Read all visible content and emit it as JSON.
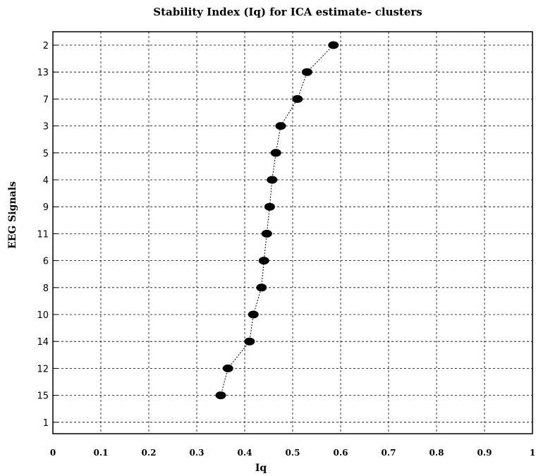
{
  "chart_data": {
    "type": "line",
    "title": "Stability Index (Iq) for ICA estimate- clusters",
    "xlabel": "Iq",
    "ylabel": "EEG Signals",
    "xlim": [
      0,
      1
    ],
    "x_ticks": [
      "0",
      "0.1",
      "0.2",
      "0.3",
      "0.4",
      "0.5",
      "0.6",
      "0.7",
      "0.8",
      "0.9",
      "1"
    ],
    "categories": [
      "2",
      "13",
      "7",
      "3",
      "5",
      "4",
      "9",
      "11",
      "6",
      "8",
      "10",
      "14",
      "12",
      "15",
      "1"
    ],
    "values": [
      0.585,
      0.53,
      0.51,
      0.475,
      0.465,
      0.457,
      0.452,
      0.446,
      0.44,
      0.435,
      0.418,
      0.41,
      0.365,
      0.35,
      null
    ],
    "grid": true,
    "marker_color": "#000000",
    "line_style": "dashed"
  }
}
